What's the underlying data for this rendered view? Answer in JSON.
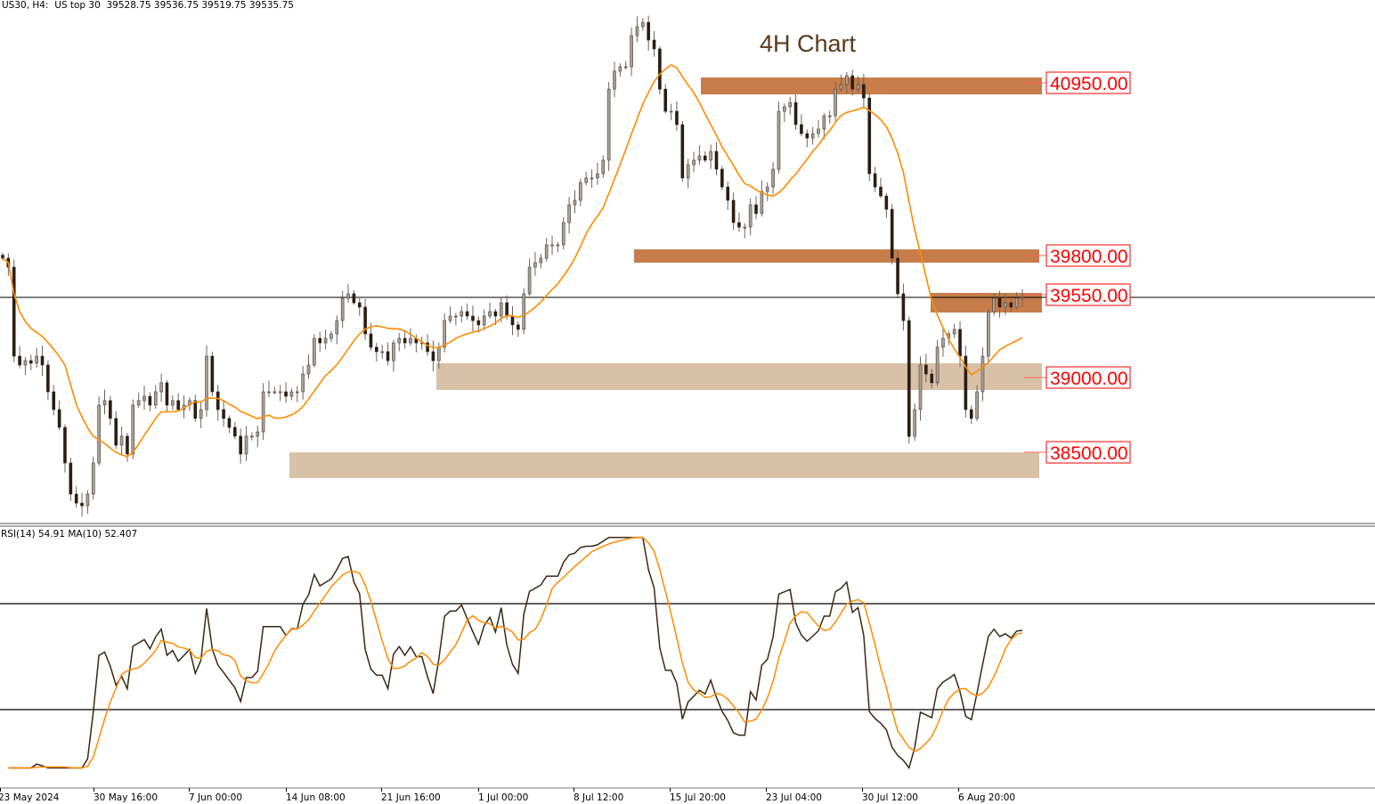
{
  "header": {
    "symbol": "US30, H4:",
    "name": "US top 30",
    "open": "39528.75",
    "high": "39536.75",
    "low": "39519.75",
    "close": "39535.75"
  },
  "rsi_header": "RSI(14) 54.91 MA(10) 52.407",
  "chart_data": {
    "type": "candlestick",
    "title": "4H Chart",
    "symbol": "US30",
    "timeframe": "H4",
    "x_ticks": [
      "23 May 2024",
      "30 May 16:00",
      "7 Jun 00:00",
      "14 Jun 08:00",
      "21 Jun 16:00",
      "1 Jul 00:00",
      "8 Jul 12:00",
      "15 Jul 20:00",
      "23 Jul 04:00",
      "30 Jul 12:00",
      "6 Aug 20:00"
    ],
    "price_range": [
      38070,
      41520
    ],
    "current_price": 39535.75,
    "closes": [
      39798,
      39738,
      39143,
      39084,
      39113,
      39096,
      39143,
      39084,
      38905,
      38786,
      38667,
      38429,
      38221,
      38161,
      38143,
      38221,
      38429,
      38816,
      38846,
      38727,
      38548,
      38608,
      38489,
      38816,
      38846,
      38875,
      38816,
      38905,
      38965,
      38816,
      38846,
      38786,
      38816,
      38846,
      38727,
      38786,
      39143,
      38905,
      38786,
      38727,
      38667,
      38608,
      38489,
      38608,
      38608,
      38637,
      38905,
      38905,
      38905,
      38905,
      38875,
      38905,
      38905,
      39024,
      39084,
      39262,
      39232,
      39262,
      39292,
      39381,
      39530,
      39560,
      39500,
      39471,
      39292,
      39203,
      39173,
      39173,
      39113,
      39232,
      39262,
      39232,
      39262,
      39232,
      39232,
      39173,
      39113,
      39203,
      39381,
      39411,
      39411,
      39441,
      39411,
      39381,
      39352,
      39411,
      39441,
      39411,
      39500,
      39411,
      39352,
      39322,
      39560,
      39738,
      39768,
      39798,
      39887,
      39887,
      39887,
      40036,
      40155,
      40185,
      40304,
      40334,
      40334,
      40363,
      40453,
      40928,
      41048,
      41078,
      41078,
      41286,
      41345,
      41375,
      41256,
      41197,
      40928,
      40780,
      40780,
      40691,
      40334,
      40423,
      40453,
      40482,
      40453,
      40512,
      40393,
      40274,
      40185,
      40036,
      40006,
      40006,
      40155,
      40096,
      40244,
      40274,
      40393,
      40780,
      40810,
      40839,
      40691,
      40631,
      40601,
      40631,
      40661,
      40750,
      40750,
      40928,
      40959,
      41018,
      40928,
      40959,
      40869,
      40363,
      40274,
      40214,
      40125,
      39798,
      39560,
      39381,
      38607,
      38786,
      39084,
      39024,
      38965,
      39203,
      39262,
      39292,
      39322,
      39143,
      38786,
      38727,
      38905,
      39143,
      39440,
      39530,
      39471,
      39500,
      39471,
      39530,
      39536
    ],
    "moving_average": {
      "color": "#ff8c00"
    },
    "zones": [
      {
        "label": "40950.00",
        "top": 41006,
        "bottom": 40893,
        "color": "#c67d4a"
      },
      {
        "label": "39800.00",
        "top": 39857,
        "bottom": 39768,
        "color": "#c67d4a"
      },
      {
        "label": "39550.00",
        "top": 39566,
        "bottom": 39435,
        "color": "#c67d4a"
      },
      {
        "label": "39000.00",
        "top": 39096,
        "bottom": 38917,
        "color": "#d8c1a6"
      },
      {
        "label": "38500.00",
        "top": 38500,
        "bottom": 38328,
        "color": "#d8c1a6"
      }
    ],
    "rsi": {
      "period": 14,
      "ma_period": 10,
      "levels": [
        70,
        30
      ],
      "line_color": "#3b2816",
      "ma_color": "#ff8c00",
      "value": 54.91,
      "ma_value": 52.407
    }
  }
}
